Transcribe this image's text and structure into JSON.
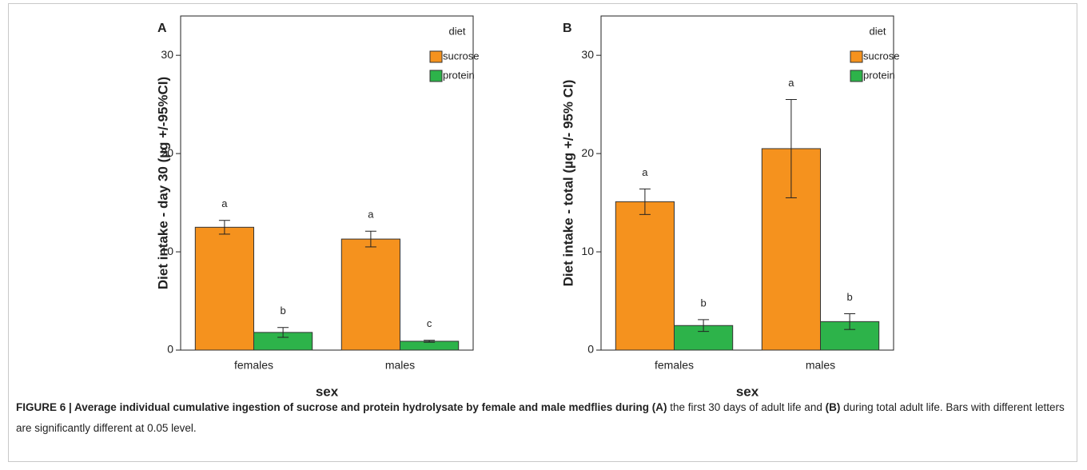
{
  "caption": [
    "FIGURE 6 | Average individual cumulative ingestion of sucrose and protein hydrolysate by female and male medflies during (A)",
    " the first 30 days of adult life and ",
    "(B)",
    " during total adult life. Bars with different letters are significantly different at 0.05 level."
  ],
  "chart_data": [
    {
      "type": "bar",
      "panel": "A",
      "y_label": "Diet intake - day 30 (µg +/-95%CI)",
      "x_label": "sex",
      "legend_title": "diet",
      "categories": [
        "females",
        "males"
      ],
      "series": [
        {
          "name": "sucrose",
          "color": "#f5921e",
          "values": [
            12.5,
            11.3
          ],
          "errors": [
            0.7,
            0.8
          ],
          "letters": [
            "a",
            "a"
          ]
        },
        {
          "name": "protein",
          "color": "#2db34a",
          "values": [
            1.8,
            0.9
          ],
          "errors": [
            0.5,
            0.1
          ],
          "letters": [
            "b",
            "c"
          ]
        }
      ],
      "ylim": [
        0,
        34
      ],
      "yticks": [
        0,
        10,
        20,
        30
      ]
    },
    {
      "type": "bar",
      "panel": "B",
      "y_label": "Diet intake - total (µg +/- 95% CI)",
      "x_label": "sex",
      "legend_title": "diet",
      "categories": [
        "females",
        "males"
      ],
      "series": [
        {
          "name": "sucrose",
          "color": "#f5921e",
          "values": [
            15.1,
            20.5
          ],
          "errors": [
            1.3,
            5.0
          ],
          "letters": [
            "a",
            "a"
          ]
        },
        {
          "name": "protein",
          "color": "#2db34a",
          "values": [
            2.5,
            2.9
          ],
          "errors": [
            0.6,
            0.8
          ],
          "letters": [
            "b",
            "b"
          ]
        }
      ],
      "ylim": [
        0,
        34
      ],
      "yticks": [
        0,
        10,
        20,
        30
      ]
    }
  ]
}
